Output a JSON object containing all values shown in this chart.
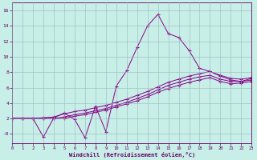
{
  "xlabel": "Windchill (Refroidissement éolien,°C)",
  "xlim": [
    0,
    23
  ],
  "ylim": [
    -1.2,
    17
  ],
  "ytick_vals": [
    0,
    2,
    4,
    6,
    8,
    10,
    12,
    14,
    16
  ],
  "ytick_labels": [
    "-0",
    "2",
    "4",
    "6",
    "8",
    "10",
    "12",
    "14",
    "16"
  ],
  "xtick_vals": [
    0,
    1,
    2,
    3,
    4,
    5,
    6,
    7,
    8,
    9,
    10,
    11,
    12,
    13,
    14,
    15,
    16,
    17,
    18,
    19,
    20,
    21,
    22,
    23
  ],
  "bg_color": "#c8eee8",
  "line_color": "#880088",
  "grid_color": "#99bbbb",
  "line1_y": [
    2.0,
    2.0,
    2.0,
    2.1,
    2.2,
    2.6,
    2.9,
    3.1,
    3.4,
    3.7,
    4.1,
    4.5,
    5.0,
    5.5,
    6.1,
    6.7,
    7.1,
    7.5,
    7.8,
    8.1,
    7.6,
    7.2,
    7.1,
    7.3
  ],
  "line2_y": [
    2.0,
    2.0,
    2.0,
    2.0,
    2.0,
    2.2,
    2.5,
    2.7,
    3.0,
    3.3,
    3.7,
    4.1,
    4.6,
    5.1,
    5.7,
    6.3,
    6.7,
    7.1,
    7.4,
    7.6,
    7.1,
    6.8,
    6.8,
    7.0
  ],
  "line3_y": [
    2.0,
    2.0,
    2.0,
    2.0,
    2.0,
    2.0,
    2.3,
    2.5,
    2.8,
    3.1,
    3.5,
    3.9,
    4.3,
    4.8,
    5.4,
    5.9,
    6.3,
    6.7,
    7.0,
    7.3,
    6.8,
    6.5,
    6.6,
    6.8
  ],
  "line4_y": [
    2.0,
    2.0,
    2.0,
    -0.4,
    2.1,
    2.7,
    1.9,
    -0.5,
    3.6,
    0.3,
    6.2,
    8.2,
    11.2,
    14.0,
    15.5,
    13.0,
    12.5,
    10.8,
    8.5,
    8.1,
    7.5,
    7.0,
    6.8,
    7.2
  ]
}
